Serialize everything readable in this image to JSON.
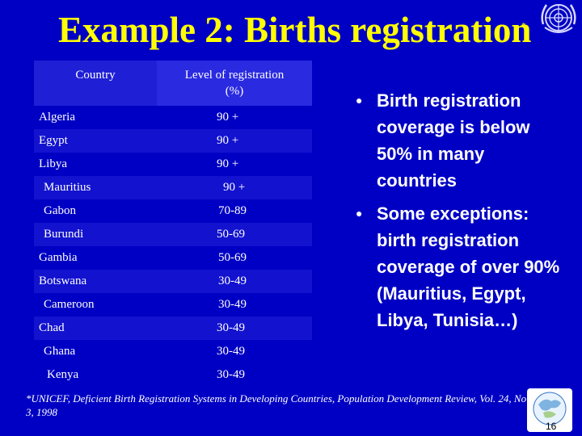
{
  "title": "Example 2: Births registration",
  "title_mark": "*",
  "table": {
    "headers": {
      "country": "Country",
      "level_line1": "Level of registration",
      "level_line2": "(%)"
    },
    "rows": [
      {
        "country": "Algeria",
        "level": "90 +"
      },
      {
        "country": "Egypt",
        "level": "90 +"
      },
      {
        "country": "Libya",
        "level": "90 +"
      },
      {
        "country": "Mauritius",
        "level": "90 +"
      },
      {
        "country": "Gabon",
        "level": "70-89"
      },
      {
        "country": "Burundi",
        "level": "50-69"
      },
      {
        "country": "Gambia",
        "level": "50-69"
      },
      {
        "country": "Botswana",
        "level": "30-49"
      },
      {
        "country": "Cameroon",
        "level": "30-49"
      },
      {
        "country": "Chad",
        "level": "30-49"
      },
      {
        "country": "Ghana",
        "level": "30-49"
      },
      {
        "country": "Kenya",
        "level": "30-49"
      }
    ]
  },
  "bullets": [
    "Birth registration coverage is below 50% in many countries",
    "Some exceptions: birth registration coverage of over 90% (Mauritius, Egypt, Libya, Tunisia…)"
  ],
  "footnote": "*UNICEF, Deficient Birth Registration Systems in Developing Countries, Population Development Review, Vol. 24, No 3, 1998",
  "page_number": "16",
  "icons": {
    "top_right": "un-emblem-icon",
    "bottom_right": "globe-logo-icon"
  },
  "colors": {
    "background": "#0000c4",
    "title": "#ffff00",
    "text": "#ffffff"
  }
}
